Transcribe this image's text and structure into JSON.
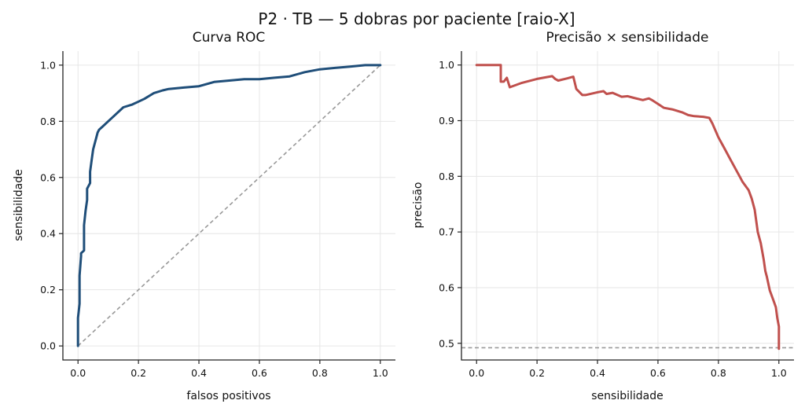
{
  "title": "P2 · TB — 5 dobras por paciente [raio-X]",
  "colors": {
    "roc": "#1f4e79",
    "pr": "#c0504d",
    "reference": "#999999",
    "grid": "#e6e6e6"
  },
  "chart_data": [
    {
      "type": "line",
      "title": "Curva ROC",
      "xlabel": "falsos positivos",
      "ylabel": "sensibilidade",
      "xlim": [
        -0.05,
        1.05
      ],
      "ylim": [
        -0.05,
        1.05
      ],
      "xticks": [
        "0.0",
        "0.2",
        "0.4",
        "0.6",
        "0.8",
        "1.0"
      ],
      "yticks": [
        "0.0",
        "0.2",
        "0.4",
        "0.6",
        "0.8",
        "1.0"
      ],
      "grid": true,
      "series": [
        {
          "x": [
            0,
            0,
            0.005,
            0.005,
            0.01,
            0.01,
            0.02,
            0.02,
            0.025,
            0.03,
            0.03,
            0.04,
            0.04,
            0.045,
            0.05,
            0.06,
            0.065,
            0.07,
            0.08,
            0.1,
            0.12,
            0.15,
            0.18,
            0.2,
            0.22,
            0.25,
            0.28,
            0.3,
            0.35,
            0.4,
            0.45,
            0.5,
            0.55,
            0.6,
            0.65,
            0.7,
            0.75,
            0.8,
            0.85,
            0.9,
            0.95,
            1.0
          ],
          "y": [
            0,
            0.1,
            0.15,
            0.25,
            0.32,
            0.33,
            0.34,
            0.43,
            0.48,
            0.52,
            0.56,
            0.58,
            0.62,
            0.66,
            0.7,
            0.74,
            0.76,
            0.77,
            0.78,
            0.8,
            0.82,
            0.85,
            0.86,
            0.87,
            0.88,
            0.9,
            0.91,
            0.915,
            0.92,
            0.925,
            0.94,
            0.945,
            0.95,
            0.95,
            0.955,
            0.96,
            0.975,
            0.985,
            0.99,
            0.995,
            1.0,
            1.0
          ]
        }
      ],
      "reference_line": {
        "x": [
          0,
          1
        ],
        "y": [
          0,
          1
        ]
      }
    },
    {
      "type": "line",
      "title": "Precisão × sensibilidade",
      "xlabel": "sensibilidade",
      "ylabel": "precisão",
      "xlim": [
        -0.05,
        1.05
      ],
      "ylim": [
        0.47,
        1.025
      ],
      "xticks": [
        "0.0",
        "0.2",
        "0.4",
        "0.6",
        "0.8",
        "1.0"
      ],
      "yticks": [
        "0.5",
        "0.6",
        "0.7",
        "0.8",
        "0.9",
        "1.0"
      ],
      "grid": true,
      "series": [
        {
          "x": [
            0,
            0.08,
            0.08,
            0.09,
            0.1,
            0.11,
            0.11,
            0.15,
            0.2,
            0.25,
            0.26,
            0.27,
            0.3,
            0.32,
            0.33,
            0.35,
            0.36,
            0.4,
            0.42,
            0.43,
            0.45,
            0.48,
            0.5,
            0.52,
            0.55,
            0.57,
            0.58,
            0.6,
            0.62,
            0.65,
            0.68,
            0.7,
            0.72,
            0.75,
            0.77,
            0.78,
            0.8,
            0.82,
            0.84,
            0.85,
            0.86,
            0.87,
            0.88,
            0.9,
            0.91,
            0.92,
            0.93,
            0.94,
            0.95,
            0.955,
            0.96,
            0.97,
            0.98,
            0.99,
            0.995,
            1.0,
            1.0
          ],
          "y": [
            1.0,
            1.0,
            0.97,
            0.97,
            0.977,
            0.96,
            0.96,
            0.968,
            0.975,
            0.98,
            0.975,
            0.972,
            0.976,
            0.979,
            0.957,
            0.946,
            0.946,
            0.951,
            0.953,
            0.948,
            0.95,
            0.943,
            0.944,
            0.941,
            0.937,
            0.94,
            0.937,
            0.93,
            0.923,
            0.92,
            0.915,
            0.91,
            0.908,
            0.907,
            0.905,
            0.895,
            0.87,
            0.85,
            0.83,
            0.82,
            0.81,
            0.8,
            0.79,
            0.775,
            0.76,
            0.74,
            0.7,
            0.68,
            0.65,
            0.63,
            0.62,
            0.595,
            0.58,
            0.565,
            0.545,
            0.53,
            0.49
          ]
        }
      ],
      "reference_line": {
        "y": 0.492
      }
    }
  ]
}
